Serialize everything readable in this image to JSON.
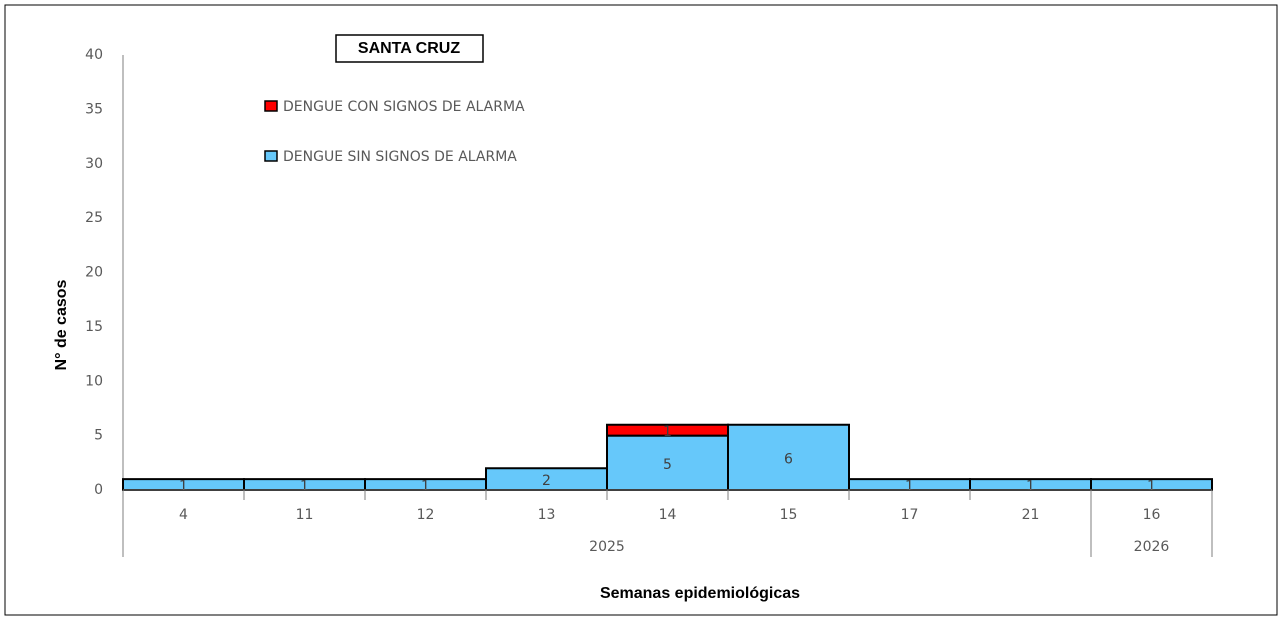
{
  "chart_data": {
    "type": "stacked_bar",
    "title": "SANTA CRUZ",
    "x_label": "Semanas epidemiológicas",
    "y_label": "N° de casos",
    "categories": [
      "4",
      "11",
      "12",
      "13",
      "14",
      "15",
      "17",
      "21",
      "16"
    ],
    "category_years": [
      "2025",
      "2025",
      "2025",
      "2025",
      "2025",
      "2025",
      "2025",
      "2025",
      "2026"
    ],
    "series": [
      {
        "name": "DENGUE SIN SIGNOS DE ALARMA",
        "color": "#66c8fa",
        "values": [
          1,
          1,
          1,
          2,
          5,
          6,
          1,
          1,
          1
        ]
      },
      {
        "name": "DENGUE CON SIGNOS DE ALARMA",
        "color": "#ff0000",
        "values": [
          null,
          null,
          null,
          null,
          1,
          null,
          null,
          null,
          null
        ]
      }
    ],
    "ylim": [
      0,
      40
    ],
    "yticks": [
      0,
      5,
      10,
      15,
      20,
      25,
      30,
      35,
      40
    ],
    "grid": false
  }
}
